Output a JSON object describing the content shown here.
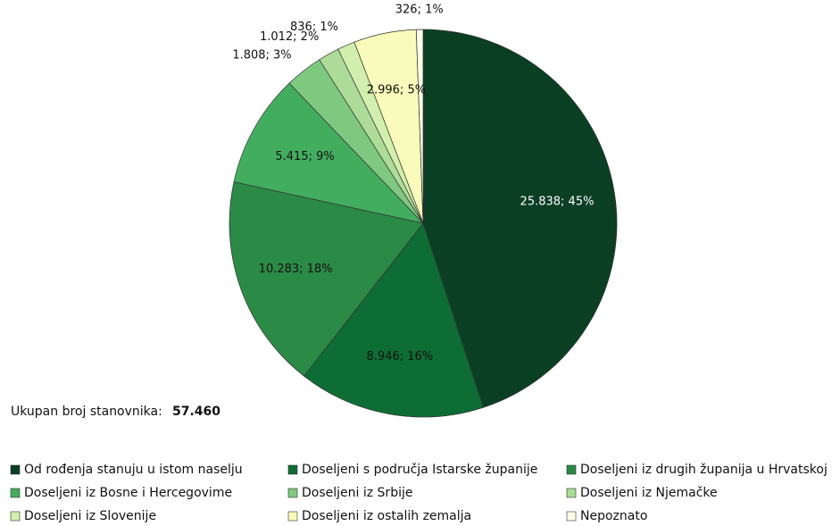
{
  "chart_data": {
    "type": "pie",
    "categories": [
      "Od rođenja stanuju u istom naselju",
      "Doseljeni s područja Istarske županije",
      "Doseljeni iz drugih županija u Hrvatskoj",
      "Doseljeni iz Bosne i Hercegovime",
      "Doseljeni iz Srbije",
      "Doseljeni iz Njemačke",
      "Doseljeni iz Slovenije",
      "Doseljeni iz ostalih zemalja",
      "Nepoznato"
    ],
    "values": [
      25838,
      8946,
      10283,
      5415,
      1808,
      1012,
      836,
      2996,
      326
    ],
    "value_labels": [
      "25.838; 45%",
      "8.946; 16%",
      "10.283; 18%",
      "5.415; 9%",
      "1.808; 3%",
      "1.012; 2%",
      "836; 1%",
      "2.996; 5%",
      "326; 1%"
    ],
    "colors": [
      "#0b3f23",
      "#0e6d34",
      "#2b8a46",
      "#43ad5f",
      "#7ec880",
      "#acdc97",
      "#d3efae",
      "#f8fbb9",
      "#fffde9"
    ],
    "total_label": "Ukupan broj stanovnika:",
    "total_value": "57.460",
    "legend": "bottom"
  }
}
